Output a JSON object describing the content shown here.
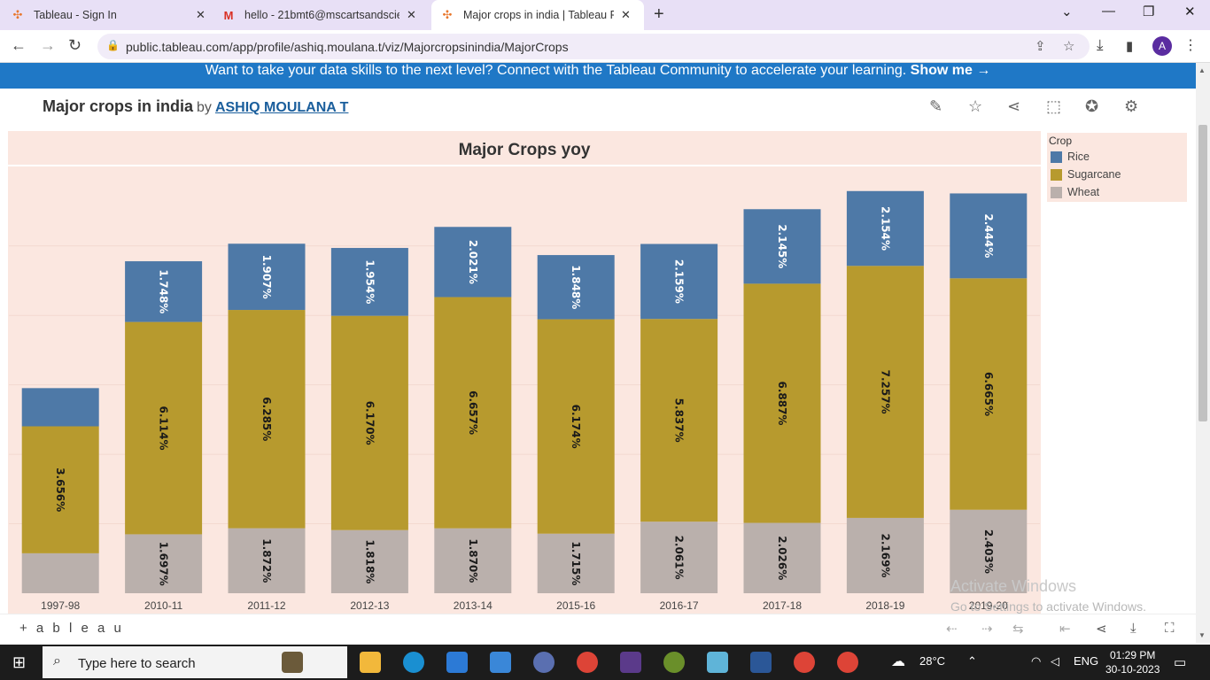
{
  "browser": {
    "tabs": [
      {
        "label": "Tableau - Sign In",
        "icon": "tableau-icon"
      },
      {
        "label": "hello - 21bmt6@mscartsandscie",
        "icon": "gmail-icon"
      },
      {
        "label": "Major crops in india | Tableau Pu",
        "icon": "tableau-icon"
      }
    ],
    "url": "public.tableau.com/app/profile/ashiq.moulana.t/viz/Majorcropsinindia/MajorCrops",
    "profile_initial": "A"
  },
  "banner": {
    "text": "Want to take your data skills to the next level? Connect with the Tableau Community to accelerate your learning. ",
    "link": "Show me →"
  },
  "viz": {
    "title": "Major crops in india",
    "by": "by",
    "author": "ASHIQ MOULANA T"
  },
  "chart_data": {
    "type": "bar",
    "stacked": true,
    "title": "Major Crops yoy",
    "categories": [
      "1997-98",
      "2010-11",
      "2011-12",
      "2012-13",
      "2013-14",
      "2015-16",
      "2016-17",
      "2017-18",
      "2018-19",
      "2019-20"
    ],
    "series": [
      {
        "name": "Wheat",
        "color": "#bab0ac",
        "values": [
          1.15,
          1.697,
          1.872,
          1.818,
          1.87,
          1.715,
          2.061,
          2.026,
          2.169,
          2.403
        ],
        "labels": [
          "",
          "1.697%",
          "1.872%",
          "1.818%",
          "1.870%",
          "1.715%",
          "2.061%",
          "2.026%",
          "2.169%",
          "2.403%"
        ]
      },
      {
        "name": "Sugarcane",
        "color": "#b79a2e",
        "values": [
          3.656,
          6.114,
          6.285,
          6.17,
          6.657,
          6.174,
          5.837,
          6.887,
          7.257,
          6.665
        ],
        "labels": [
          "3.656%",
          "6.114%",
          "6.285%",
          "6.170%",
          "6.657%",
          "6.174%",
          "5.837%",
          "6.887%",
          "7.257%",
          "6.665%"
        ]
      },
      {
        "name": "Rice",
        "color": "#4e79a7",
        "values": [
          1.1,
          1.748,
          1.907,
          1.954,
          2.021,
          1.848,
          2.159,
          2.145,
          2.154,
          2.444
        ],
        "labels": [
          "",
          "1.748%",
          "1.907%",
          "1.954%",
          "2.021%",
          "1.848%",
          "2.159%",
          "2.145%",
          "2.154%",
          "2.444%"
        ]
      }
    ],
    "legend": {
      "title": "Crop",
      "position": "right",
      "order": [
        "Rice",
        "Sugarcane",
        "Wheat"
      ]
    },
    "grid": true
  },
  "watermark": {
    "line1": "Activate Windows",
    "line2": "Go to Settings to activate Windows."
  },
  "footer": {
    "logo": "+ a b l e a u"
  },
  "taskbar": {
    "search_placeholder": "Type here to search",
    "weather": "28°C",
    "language": "ENG",
    "time": "01:29 PM",
    "date": "30-10-2023"
  }
}
